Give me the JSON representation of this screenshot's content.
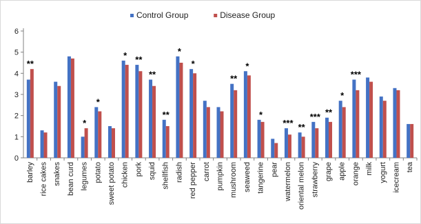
{
  "chart_data": {
    "type": "bar",
    "title": "",
    "xlabel": "",
    "ylabel": "",
    "ylim": [
      0,
      6
    ],
    "yticks": [
      "0",
      "1",
      "2",
      "3",
      "4",
      "5",
      "6"
    ],
    "grid": false,
    "legend_position": "top",
    "categories": [
      "barley",
      "rice cakes",
      "snakes",
      "bean curd",
      "legumes",
      "potato",
      "sweet potato",
      "chicken",
      "pork",
      "squid",
      "shellfish",
      "radish",
      "red pepper",
      "carrot",
      "pumpkin",
      "mushroom",
      "seaweed",
      "tangerine",
      "pear",
      "watermelon",
      "oriental melon",
      "strawberry",
      "grape",
      "apple",
      "orange",
      "milk",
      "yogurt",
      "icecream",
      "tea"
    ],
    "series": [
      {
        "name": "Control Group",
        "color": "#4472C4",
        "values": [
          3.7,
          1.3,
          3.6,
          4.8,
          1.0,
          2.4,
          1.5,
          4.6,
          4.4,
          3.7,
          1.8,
          4.8,
          4.2,
          2.7,
          2.4,
          3.5,
          4.1,
          1.8,
          0.9,
          1.4,
          1.2,
          1.7,
          1.9,
          2.7,
          3.7,
          3.8,
          2.9,
          3.3,
          1.6
        ]
      },
      {
        "name": "Disease Group",
        "color": "#C0504D",
        "values": [
          4.2,
          1.2,
          3.4,
          4.7,
          1.4,
          2.2,
          1.4,
          4.4,
          4.1,
          3.4,
          1.5,
          4.5,
          4.0,
          2.4,
          2.2,
          3.2,
          3.9,
          1.7,
          0.7,
          1.1,
          1.0,
          1.4,
          1.7,
          2.4,
          3.2,
          3.6,
          2.7,
          3.2,
          1.6
        ]
      }
    ],
    "annotations": [
      "**",
      "",
      "",
      "",
      "*",
      "*",
      "",
      "*",
      "**",
      "**",
      "**",
      "*",
      "*",
      "",
      "",
      "**",
      "*",
      "*",
      "",
      "***",
      "**",
      "***",
      "**",
      "*",
      "***",
      "",
      "",
      "",
      ""
    ]
  }
}
